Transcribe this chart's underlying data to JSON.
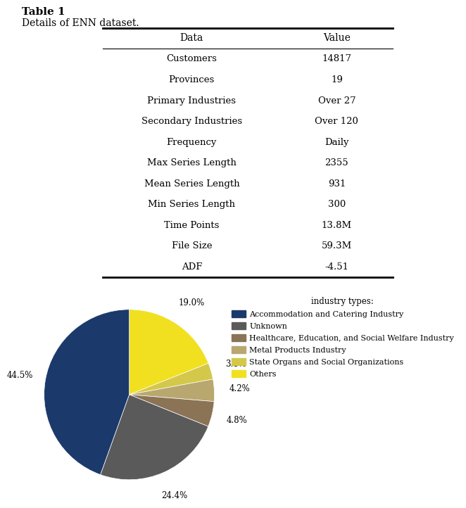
{
  "table_title": "Table 1",
  "table_subtitle": "Details of ENN dataset.",
  "table_headers": [
    "Data",
    "Value"
  ],
  "table_rows": [
    [
      "Customers",
      "14817"
    ],
    [
      "Provinces",
      "19"
    ],
    [
      "Primary Industries",
      "Over 27"
    ],
    [
      "Secondary Industries",
      "Over 120"
    ],
    [
      "Frequency",
      "Daily"
    ],
    [
      "Max Series Length",
      "2355"
    ],
    [
      "Mean Series Length",
      "931"
    ],
    [
      "Min Series Length",
      "300"
    ],
    [
      "Time Points",
      "13.8M"
    ],
    [
      "File Size",
      "59.3M"
    ],
    [
      "ADF",
      "-4.51"
    ]
  ],
  "pie_values": [
    44.5,
    24.4,
    4.8,
    4.2,
    3.1,
    19.0
  ],
  "pie_pct_labels": [
    "44.5%",
    "24.4%",
    "4.8%",
    "4.2%",
    "3.1%",
    "19.0%"
  ],
  "pie_colors": [
    "#1b3a6b",
    "#5a5a5a",
    "#8b7355",
    "#b8a870",
    "#d4c84a",
    "#f0e020"
  ],
  "pie_legend_title": "industry types:",
  "pie_legend_labels": [
    "Accommodation and Catering Industry",
    "Unknown",
    "Healthcare, Education, and Social Welfare Industry",
    "Metal Products Industry",
    "State Organs and Social Organizations",
    "Others"
  ],
  "background_color": "#ffffff"
}
